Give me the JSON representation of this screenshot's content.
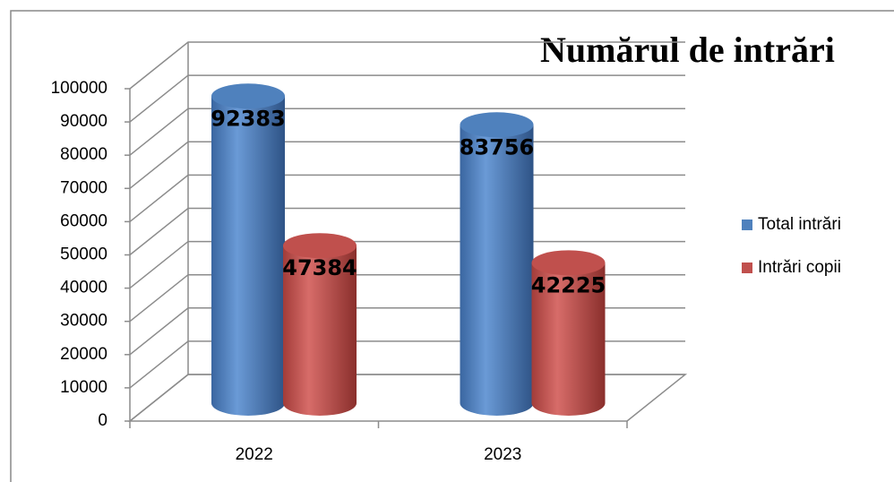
{
  "chart_data": {
    "type": "bar3d",
    "title": "Numărul de intrări",
    "categories": [
      "2022",
      "2023"
    ],
    "series": [
      {
        "name": "Total intrări",
        "color": "#4f81bd",
        "values": [
          92383,
          83756
        ]
      },
      {
        "name": "Intrări copii",
        "color": "#c0504d",
        "values": [
          47384,
          42225
        ]
      }
    ],
    "ylim": [
      0,
      100000
    ],
    "yticks": [
      0,
      10000,
      20000,
      30000,
      40000,
      50000,
      60000,
      70000,
      80000,
      90000,
      100000
    ],
    "grid": true,
    "legend": "right"
  }
}
